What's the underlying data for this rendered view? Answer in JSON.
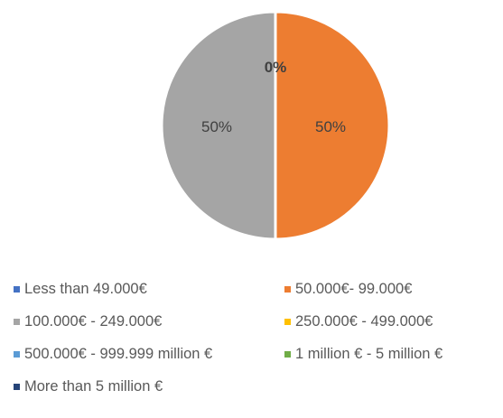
{
  "chart_data": {
    "type": "pie",
    "title": "",
    "categories": [
      "Less than 49.000€",
      "50.000€- 99.000€",
      "100.000€ - 249.000€",
      "250.000€ - 499.000€",
      "500.000€ - 999.999 million €",
      "1 million € - 5 million €",
      "More than 5 million €"
    ],
    "values": [
      0,
      50,
      50,
      0,
      0,
      0,
      0
    ],
    "data_labels": [
      "0%",
      "50%",
      "50%",
      "",
      "",
      "",
      ""
    ],
    "colors": [
      "#4472C4",
      "#ED7D31",
      "#A5A5A5",
      "#FFC000",
      "#5B9BD5",
      "#70AD47",
      "#264478"
    ],
    "legend_position": "bottom"
  }
}
